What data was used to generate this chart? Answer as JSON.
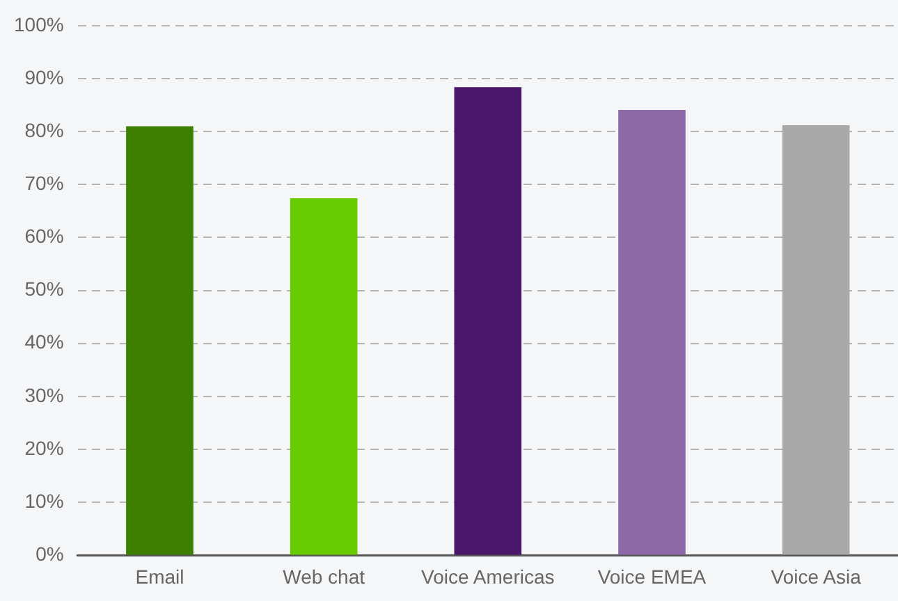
{
  "chart_data": {
    "type": "bar",
    "categories": [
      "Email",
      "Web chat",
      "Voice Americas",
      "Voice EMEA",
      "Voice Asia"
    ],
    "values": [
      81,
      67.4,
      88.4,
      84.1,
      81.2
    ],
    "colors": [
      "#3d7f00",
      "#66cc00",
      "#4a166a",
      "#8f68a8",
      "#a9a9a9"
    ],
    "ylim": [
      0,
      100
    ],
    "yticks": [
      {
        "value": 0,
        "label": "0%"
      },
      {
        "value": 10,
        "label": "10%"
      },
      {
        "value": 20,
        "label": "20%"
      },
      {
        "value": 30,
        "label": "30%"
      },
      {
        "value": 40,
        "label": "40%"
      },
      {
        "value": 50,
        "label": "50%"
      },
      {
        "value": 60,
        "label": "60%"
      },
      {
        "value": 70,
        "label": "70%"
      },
      {
        "value": 80,
        "label": "80%"
      },
      {
        "value": 90,
        "label": "90%"
      },
      {
        "value": 100,
        "label": "100%"
      }
    ],
    "grid": "y",
    "legend": false
  }
}
